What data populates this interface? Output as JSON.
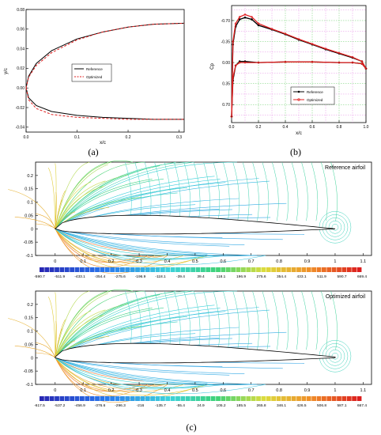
{
  "panels": {
    "a": {
      "caption": "(a)",
      "xlabel": "x/c",
      "ylabel": "y/c",
      "xticks": [
        "0.0",
        "0.1",
        "0.2",
        "0.3"
      ],
      "yticks": [
        "0.08",
        "0.06",
        "0.04",
        "0.02",
        "0.00",
        "-0.02",
        "-0.04"
      ],
      "legend": [
        "Reference",
        "Optimized"
      ]
    },
    "b": {
      "caption": "(b)",
      "xlabel": "x/c",
      "ylabel": "Cp",
      "xticks": [
        "0.0",
        "0.2",
        "0.4",
        "0.6",
        "0.8",
        "1.0"
      ],
      "yticks": [
        "-0.70",
        "-0.35",
        "0.00",
        "0.35",
        "0.70"
      ],
      "legend": [
        "Reference",
        "Optimized"
      ]
    },
    "c": {
      "caption": "(c)",
      "ref_title": "Reference airfoil",
      "opt_title": "Optimized airfoil",
      "xticks": [
        "0",
        "0.1",
        "0.2",
        "0.3",
        "0.4",
        "0.5",
        "0.6",
        "0.7",
        "0.8",
        "0.9",
        "1",
        "1.1"
      ],
      "yticks": [
        "0.2",
        "0.15",
        "0.1",
        "0.05",
        "0",
        "-0.05",
        "-0.1"
      ],
      "ref_colorbar": [
        "-590.7",
        "-511.9",
        "-433.1",
        "-354.4",
        "-275.6",
        "-196.9",
        "-118.1",
        "-39.4",
        "39.4",
        "118.1",
        "196.9",
        "275.6",
        "354.4",
        "433.1",
        "511.9",
        "590.7",
        "669.4"
      ],
      "opt_colorbar": [
        "-617.5",
        "-537.2",
        "-456.9",
        "-376.6",
        "-296.3",
        "-216",
        "-135.7",
        "-55.4",
        "24.9",
        "105.2",
        "185.5",
        "265.8",
        "346.1",
        "426.5",
        "506.8",
        "587.1",
        "667.4"
      ]
    }
  },
  "chart_data": [
    {
      "type": "line",
      "xlabel": "x/c",
      "ylabel": "y/c",
      "xlim": [
        0,
        0.31
      ],
      "ylim": [
        -0.045,
        0.08
      ],
      "series": [
        {
          "name": "Reference",
          "color": "#000000",
          "upper": [
            [
              0,
              0
            ],
            [
              0.005,
              0.012
            ],
            [
              0.02,
              0.025
            ],
            [
              0.05,
              0.038
            ],
            [
              0.1,
              0.05
            ],
            [
              0.15,
              0.057
            ],
            [
              0.2,
              0.062
            ],
            [
              0.25,
              0.065
            ],
            [
              0.31,
              0.066
            ]
          ],
          "lower": [
            [
              0,
              0
            ],
            [
              0.005,
              -0.01
            ],
            [
              0.02,
              -0.018
            ],
            [
              0.05,
              -0.024
            ],
            [
              0.1,
              -0.028
            ],
            [
              0.15,
              -0.03
            ],
            [
              0.2,
              -0.031
            ],
            [
              0.25,
              -0.032
            ],
            [
              0.31,
              -0.032
            ]
          ]
        },
        {
          "name": "Optimized",
          "color": "#e02020",
          "upper": [
            [
              0,
              0
            ],
            [
              0.005,
              0.011
            ],
            [
              0.02,
              0.023
            ],
            [
              0.05,
              0.036
            ],
            [
              0.1,
              0.049
            ],
            [
              0.15,
              0.057
            ],
            [
              0.2,
              0.062
            ],
            [
              0.25,
              0.065
            ],
            [
              0.31,
              0.066
            ]
          ],
          "lower": [
            [
              0,
              0
            ],
            [
              0.005,
              -0.012
            ],
            [
              0.02,
              -0.021
            ],
            [
              0.05,
              -0.027
            ],
            [
              0.1,
              -0.03
            ],
            [
              0.15,
              -0.031
            ],
            [
              0.2,
              -0.032
            ],
            [
              0.25,
              -0.032
            ],
            [
              0.31,
              -0.032
            ]
          ]
        }
      ]
    },
    {
      "type": "line",
      "xlabel": "x/c",
      "ylabel": "Cp",
      "xlim": [
        0,
        1
      ],
      "ylim": [
        -0.95,
        1.0
      ],
      "y_reversed": true,
      "series": [
        {
          "name": "Reference",
          "color": "#000000",
          "upper": [
            [
              0,
              0.9
            ],
            [
              0.01,
              -0.3
            ],
            [
              0.03,
              -0.6
            ],
            [
              0.06,
              -0.72
            ],
            [
              0.1,
              -0.75
            ],
            [
              0.15,
              -0.72
            ],
            [
              0.2,
              -0.62
            ],
            [
              0.3,
              -0.55
            ],
            [
              0.4,
              -0.47
            ],
            [
              0.5,
              -0.38
            ],
            [
              0.6,
              -0.3
            ],
            [
              0.7,
              -0.22
            ],
            [
              0.8,
              -0.15
            ],
            [
              0.9,
              -0.08
            ],
            [
              0.97,
              -0.02
            ],
            [
              1.0,
              0.1
            ]
          ],
          "lower": [
            [
              0,
              0.9
            ],
            [
              0.01,
              0.3
            ],
            [
              0.03,
              0.05
            ],
            [
              0.06,
              -0.02
            ],
            [
              0.1,
              -0.02
            ],
            [
              0.2,
              0.0
            ],
            [
              0.4,
              -0.01
            ],
            [
              0.6,
              -0.01
            ],
            [
              0.8,
              0.0
            ],
            [
              0.9,
              0.0
            ],
            [
              0.97,
              0.02
            ],
            [
              1.0,
              0.1
            ]
          ]
        },
        {
          "name": "Optimized",
          "color": "#e02020",
          "upper": [
            [
              0,
              0.9
            ],
            [
              0.01,
              -0.35
            ],
            [
              0.03,
              -0.65
            ],
            [
              0.06,
              -0.76
            ],
            [
              0.1,
              -0.8
            ],
            [
              0.15,
              -0.76
            ],
            [
              0.2,
              -0.65
            ],
            [
              0.3,
              -0.56
            ],
            [
              0.4,
              -0.48
            ],
            [
              0.5,
              -0.39
            ],
            [
              0.6,
              -0.31
            ],
            [
              0.7,
              -0.23
            ],
            [
              0.8,
              -0.16
            ],
            [
              0.9,
              -0.09
            ],
            [
              0.97,
              -0.02
            ],
            [
              1.0,
              0.1
            ]
          ],
          "lower": [
            [
              0,
              0.9
            ],
            [
              0.01,
              0.25
            ],
            [
              0.03,
              0.05
            ],
            [
              0.06,
              0.0
            ],
            [
              0.1,
              0.0
            ],
            [
              0.2,
              0.0
            ],
            [
              0.4,
              -0.01
            ],
            [
              0.6,
              -0.01
            ],
            [
              0.8,
              0.0
            ],
            [
              0.9,
              0.0
            ],
            [
              0.97,
              0.02
            ],
            [
              1.0,
              0.1
            ]
          ]
        }
      ]
    }
  ]
}
